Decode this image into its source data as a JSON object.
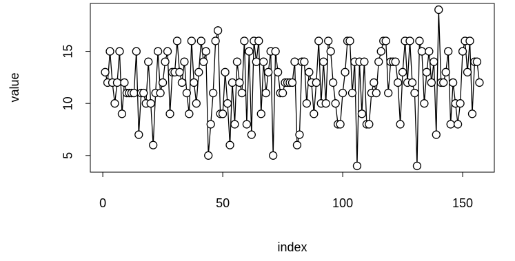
{
  "chart_data": {
    "type": "b",
    "xlabel": "index",
    "ylabel": "value",
    "x": [
      1,
      2,
      3,
      4,
      5,
      6,
      7,
      8,
      9,
      10,
      11,
      12,
      13,
      14,
      15,
      16,
      17,
      18,
      19,
      20,
      21,
      22,
      23,
      24,
      25,
      26,
      27,
      28,
      29,
      30,
      31,
      32,
      33,
      34,
      35,
      36,
      37,
      38,
      39,
      40,
      41,
      42,
      43,
      44,
      45,
      46,
      47,
      48,
      49,
      50,
      51,
      52,
      53,
      54,
      55,
      56,
      57,
      58,
      59,
      60,
      61,
      62,
      63,
      64,
      65,
      66,
      67,
      68,
      69,
      70,
      71,
      72,
      73,
      74,
      75,
      76,
      77,
      78,
      79,
      80,
      81,
      82,
      83,
      84,
      85,
      86,
      87,
      88,
      89,
      90,
      91,
      92,
      93,
      94,
      95,
      96,
      97,
      98,
      99,
      100,
      101,
      102,
      103,
      104,
      105,
      106,
      107,
      108,
      109,
      110,
      111,
      112,
      113,
      114,
      115,
      116,
      117,
      118,
      119,
      120,
      121,
      122,
      123,
      124,
      125,
      126,
      127,
      128,
      129,
      130,
      131,
      132,
      133,
      134,
      135,
      136,
      137,
      138,
      139,
      140,
      141,
      142,
      143,
      144,
      145,
      146,
      147,
      148,
      149,
      150,
      151,
      152,
      153,
      154,
      155,
      156,
      157
    ],
    "values": [
      13,
      12,
      15,
      12,
      10,
      12,
      15,
      9,
      12,
      11,
      11,
      11,
      11,
      15,
      7,
      11,
      11,
      10,
      14,
      10,
      6,
      11,
      15,
      11,
      12,
      14,
      15,
      9,
      13,
      13,
      16,
      13,
      12,
      14,
      11,
      9,
      16,
      12,
      10,
      13,
      16,
      14,
      15,
      5,
      8,
      11,
      16,
      17,
      9,
      9,
      13,
      10,
      6,
      12,
      8,
      14,
      12,
      11,
      16,
      8,
      15,
      7,
      16,
      14,
      16,
      9,
      14,
      11,
      13,
      15,
      5,
      15,
      13,
      11,
      11,
      12,
      12,
      12,
      12,
      14,
      6,
      7,
      14,
      14,
      10,
      13,
      12,
      9,
      12,
      16,
      10,
      14,
      10,
      16,
      15,
      12,
      10,
      8,
      8,
      11,
      13,
      16,
      16,
      11,
      14,
      4,
      14,
      9,
      14,
      8,
      8,
      11,
      12,
      11,
      14,
      15,
      16,
      16,
      11,
      14,
      14,
      14,
      12,
      8,
      13,
      16,
      12,
      16,
      12,
      11,
      4,
      16,
      15,
      10,
      13,
      15,
      12,
      14,
      7,
      19,
      12,
      12,
      13,
      15,
      8,
      12,
      10,
      8,
      10,
      15,
      16,
      13,
      16,
      9,
      14,
      14,
      12
    ],
    "color": "#000000",
    "xlim": [
      -5.2,
      163.2
    ],
    "xticks": [
      0,
      50,
      100,
      150
    ],
    "ylim": [
      3.4,
      19.6
    ],
    "yticks": [
      5,
      10,
      15
    ]
  }
}
